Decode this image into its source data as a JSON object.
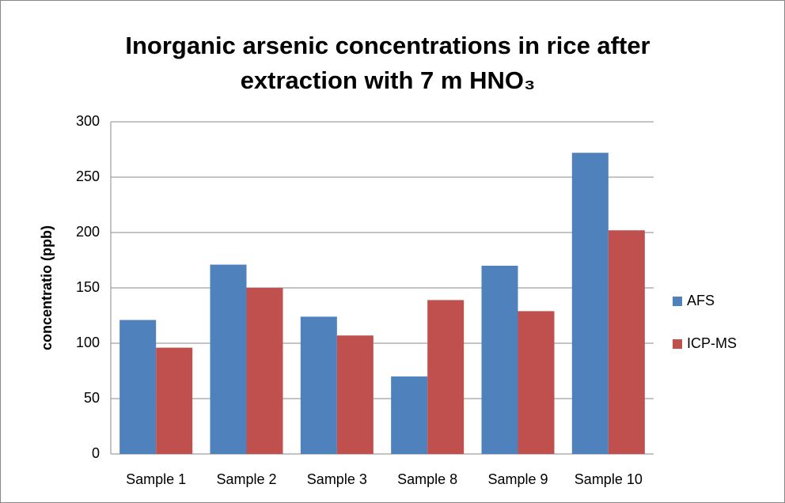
{
  "chart_data": {
    "type": "bar",
    "title": "Inorganic arsenic concentrations in rice after extraction with 7 m HNO₃",
    "y_label": "concentratio (ppb)",
    "categories": [
      "Sample 1",
      "Sample 2",
      "Sample 3",
      "Sample 8",
      "Sample 9",
      "Sample 10"
    ],
    "series": [
      {
        "name": "AFS",
        "color": "#4f81bd",
        "values": [
          121,
          171,
          124,
          70,
          170,
          272
        ]
      },
      {
        "name": "ICP-MS",
        "color": "#c0504d",
        "values": [
          96,
          150,
          107,
          139,
          129,
          202
        ]
      }
    ],
    "ylim": [
      0,
      300
    ],
    "yticks": [
      0,
      50,
      100,
      150,
      200,
      250,
      300
    ],
    "grid": true,
    "legend": "right"
  }
}
